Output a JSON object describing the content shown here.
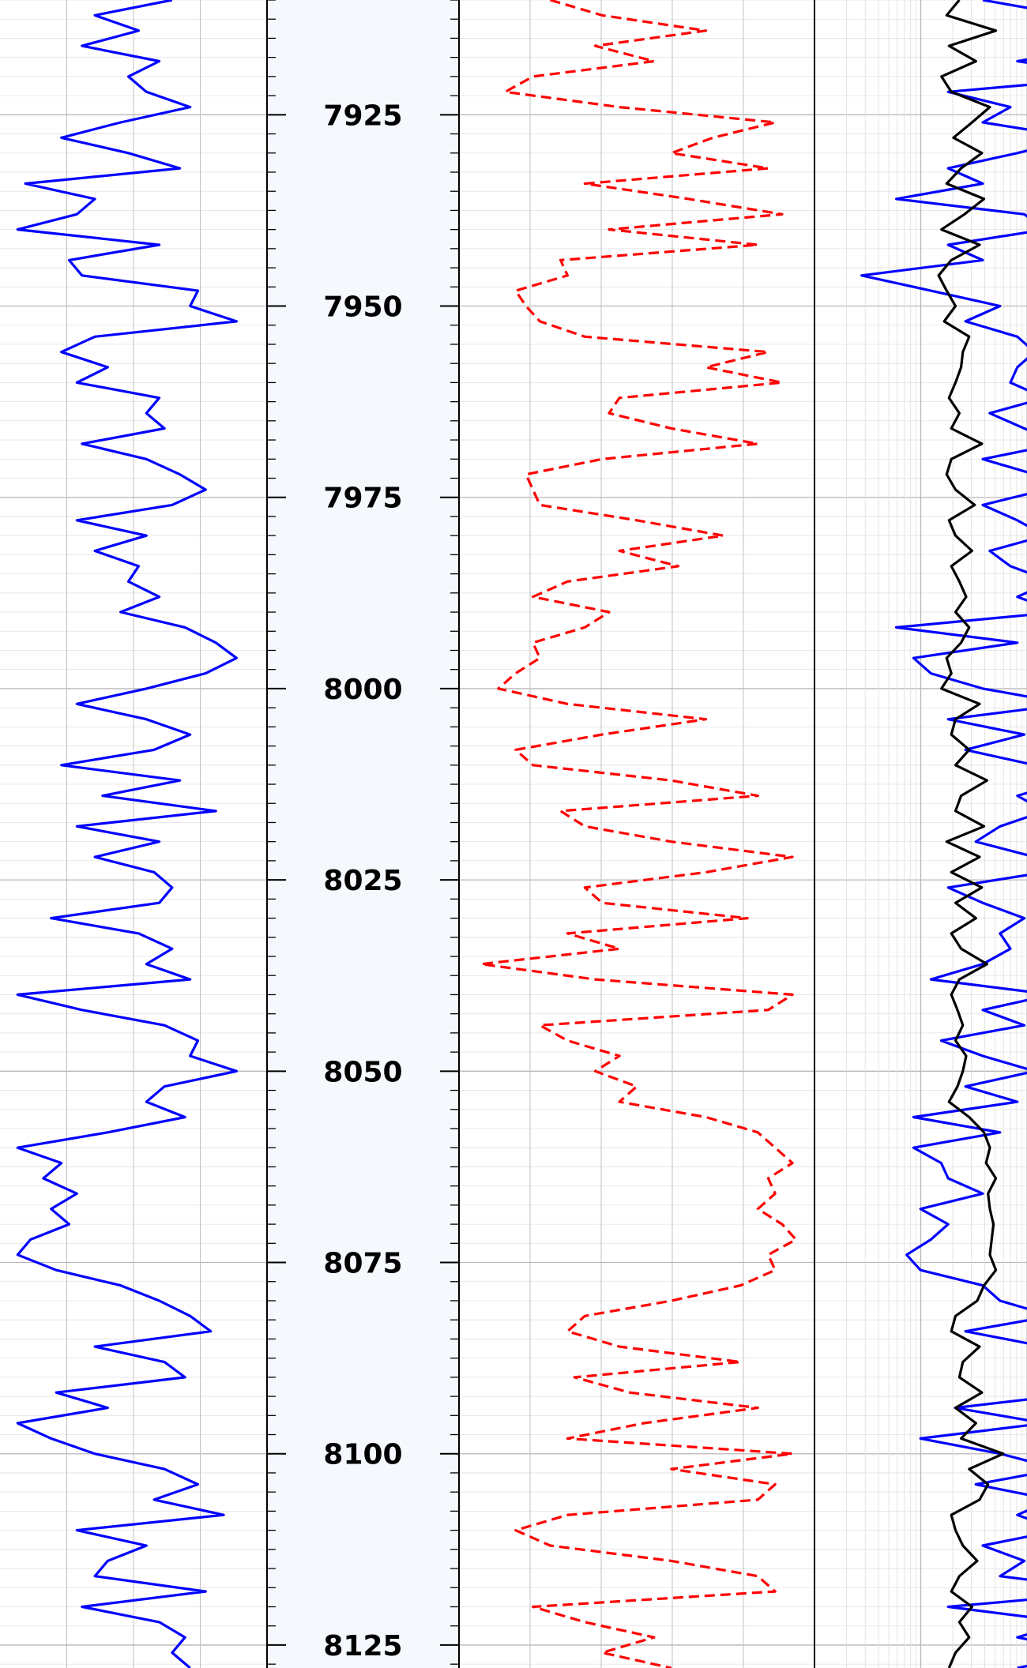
{
  "chart_data": {
    "type": "line",
    "title": "",
    "depth_axis": {
      "range": [
        7910,
        8128
      ],
      "major_step": 25,
      "minor_step": 2.5,
      "tick_labels": [
        "7925",
        "7950",
        "7975",
        "8000",
        "8025",
        "8050",
        "8075",
        "8100",
        "8125"
      ]
    },
    "tracks": [
      {
        "id": "track1",
        "background": "#ffffff",
        "grid": "linear",
        "vertical_divisions": 4
      },
      {
        "id": "depth",
        "background": "#f5f8fd"
      },
      {
        "id": "track2",
        "background": "#ffffff",
        "grid": "linear",
        "vertical_divisions": 5
      },
      {
        "id": "track3",
        "background": "#ffffff",
        "grid": "log",
        "decades": 2
      }
    ],
    "series": [
      {
        "track": "track1",
        "color": "#0000ff",
        "dash": "solid",
        "xlim": [
          0,
          100
        ],
        "depth": [
          7910,
          7912,
          7914,
          7916,
          7918,
          7920,
          7922,
          7924,
          7926,
          7928,
          7930,
          7932,
          7934,
          7936,
          7938,
          7940,
          7942,
          7944,
          7946,
          7948,
          7950,
          7952,
          7954,
          7956,
          7958,
          7960,
          7962,
          7964,
          7966,
          7968,
          7970,
          7972,
          7974,
          7976,
          7978,
          7980,
          7982,
          7984,
          7986,
          7988,
          7990,
          7992,
          7994,
          7996,
          7998,
          8000,
          8002,
          8004,
          8006,
          8008,
          8010,
          8012,
          8014,
          8016,
          8018,
          8020,
          8022,
          8024,
          8026,
          8028,
          8030,
          8032,
          8034,
          8036,
          8038,
          8040,
          8042,
          8044,
          8046,
          8048,
          8050,
          8052,
          8054,
          8056,
          8058,
          8060,
          8062,
          8064,
          8066,
          8068,
          8070,
          8072,
          8074,
          8076,
          8078,
          8080,
          8082,
          8084,
          8086,
          8088,
          8090,
          8092,
          8094,
          8096,
          8098,
          8100,
          8102,
          8104,
          8106,
          8108,
          8110,
          8112,
          8114,
          8116,
          8118,
          8120,
          8122,
          8124,
          8126,
          8128
        ],
        "values": [
          65,
          35,
          52,
          30,
          60,
          48,
          55,
          72,
          45,
          22,
          48,
          68,
          8,
          35,
          28,
          5,
          60,
          25,
          30,
          75,
          72,
          90,
          35,
          22,
          40,
          28,
          60,
          55,
          62,
          30,
          55,
          68,
          78,
          65,
          28,
          55,
          35,
          52,
          48,
          60,
          45,
          70,
          82,
          90,
          78,
          55,
          28,
          55,
          72,
          58,
          22,
          68,
          38,
          82,
          28,
          60,
          35,
          58,
          65,
          60,
          18,
          52,
          65,
          55,
          72,
          5,
          30,
          62,
          75,
          72,
          90,
          62,
          55,
          70,
          40,
          5,
          22,
          15,
          28,
          18,
          25,
          10,
          5,
          20,
          45,
          60,
          72,
          80,
          35,
          62,
          70,
          20,
          40,
          5,
          18,
          35,
          62,
          75,
          58,
          85,
          28,
          55,
          40,
          35,
          78,
          30,
          60,
          70,
          65,
          72
        ]
      },
      {
        "track": "track2",
        "color": "#ff0000",
        "dash": "dashed",
        "xlim": [
          0,
          100
        ],
        "depth": [
          7910,
          7912,
          7914,
          7916,
          7918,
          7920,
          7922,
          7924,
          7926,
          7928,
          7930,
          7932,
          7934,
          7936,
          7938,
          7940,
          7942,
          7944,
          7946,
          7948,
          7950,
          7952,
          7954,
          7956,
          7958,
          7960,
          7962,
          7964,
          7966,
          7968,
          7970,
          7972,
          7974,
          7976,
          7978,
          7980,
          7982,
          7984,
          7986,
          7988,
          7990,
          7992,
          7994,
          7996,
          7998,
          8000,
          8002,
          8004,
          8006,
          8008,
          8010,
          8012,
          8014,
          8016,
          8018,
          8020,
          8022,
          8024,
          8026,
          8028,
          8030,
          8032,
          8034,
          8036,
          8038,
          8040,
          8042,
          8044,
          8046,
          8048,
          8050,
          8052,
          8054,
          8056,
          8058,
          8060,
          8062,
          8064,
          8066,
          8068,
          8070,
          8072,
          8074,
          8076,
          8078,
          8080,
          8082,
          8084,
          8086,
          8088,
          8090,
          8092,
          8094,
          8096,
          8098,
          8100,
          8102,
          8104,
          8106,
          8108,
          8110,
          8112,
          8114,
          8116,
          8118,
          8120,
          8122,
          8124,
          8126,
          8128
        ],
        "values": [
          25,
          40,
          70,
          38,
          55,
          20,
          12,
          45,
          90,
          72,
          60,
          88,
          35,
          65,
          92,
          42,
          85,
          28,
          30,
          15,
          18,
          22,
          35,
          88,
          70,
          92,
          45,
          42,
          60,
          85,
          40,
          18,
          20,
          22,
          50,
          75,
          45,
          62,
          30,
          20,
          42,
          35,
          20,
          22,
          15,
          10,
          30,
          70,
          40,
          15,
          20,
          60,
          85,
          28,
          35,
          60,
          95,
          70,
          35,
          40,
          82,
          30,
          45,
          5,
          38,
          95,
          88,
          22,
          30,
          45,
          38,
          50,
          45,
          70,
          85,
          90,
          95,
          88,
          90,
          85,
          92,
          96,
          88,
          90,
          80,
          60,
          35,
          30,
          45,
          80,
          32,
          48,
          85,
          52,
          30,
          95,
          60,
          90,
          85,
          30,
          15,
          25,
          60,
          85,
          90,
          20,
          35,
          55,
          40,
          60
        ]
      },
      {
        "track": "track2",
        "color": "#0000ff",
        "dash": "solid",
        "xlim": [
          0,
          100
        ],
        "depth": [
          7910,
          7912,
          7914,
          7916,
          7918,
          7920,
          7922,
          7924,
          7926,
          7928,
          7930,
          7932,
          7934,
          7936,
          7938,
          7940,
          7942,
          7944,
          7946,
          7948,
          7950,
          7952,
          7954,
          7956,
          7958,
          7960,
          7962,
          7964,
          7966,
          7968,
          7970,
          7972,
          7974,
          7976,
          7978,
          7980,
          7982,
          7984,
          7986,
          7988,
          7990,
          7992,
          7994,
          7996,
          7998,
          8000,
          8002,
          8004,
          8006,
          8008,
          8010,
          8012,
          8014,
          8016,
          8018,
          8020,
          8022,
          8024,
          8026,
          8028,
          8030,
          8032,
          8034,
          8036,
          8038,
          8040,
          8042,
          8044,
          8046,
          8048,
          8050,
          8052,
          8054,
          8056,
          8058,
          8060,
          8062,
          8064,
          8066,
          8068,
          8070,
          8072,
          8074,
          8076,
          8078,
          8080,
          8082,
          8084,
          8086,
          8088,
          8090,
          8092,
          8094,
          8096,
          8098,
          8100,
          8102,
          8104,
          8106,
          8108,
          8110,
          8112,
          8114,
          8116,
          8118,
          8120,
          8122,
          8124,
          8126,
          8128
        ],
        "values": [
          150,
          175,
          168,
          185,
          160,
          190,
          140,
          158,
          150,
          178,
          160,
          140,
          150,
          125,
          162,
          168,
          140,
          150,
          115,
          135,
          155,
          145,
          160,
          165,
          160,
          158,
          168,
          152,
          162,
          172,
          150,
          165,
          168,
          150,
          160,
          168,
          152,
          158,
          170,
          160,
          172,
          125,
          160,
          130,
          135,
          150,
          175,
          140,
          162,
          145,
          165,
          175,
          160,
          168,
          155,
          148,
          165,
          168,
          140,
          150,
          162,
          155,
          158,
          150,
          135,
          170,
          150,
          162,
          138,
          150,
          165,
          145,
          160,
          130,
          155,
          130,
          138,
          140,
          150,
          132,
          140,
          135,
          128,
          132,
          150,
          155,
          170,
          145,
          168,
          180,
          168,
          180,
          142,
          168,
          132,
          155,
          172,
          148,
          170,
          160,
          172,
          150,
          162,
          155,
          190,
          140,
          175,
          160,
          182,
          160
        ]
      },
      {
        "track": "track3",
        "color": "#000000",
        "dash": "solid",
        "xlim": [
          0.1,
          10
        ],
        "scale": "log",
        "depth": [
          7910,
          7912,
          7914,
          7916,
          7918,
          7920,
          7922,
          7924,
          7926,
          7928,
          7930,
          7932,
          7934,
          7936,
          7938,
          7940,
          7942,
          7944,
          7946,
          7948,
          7950,
          7952,
          7954,
          7956,
          7958,
          7960,
          7962,
          7964,
          7966,
          7968,
          7970,
          7972,
          7974,
          7976,
          7978,
          7980,
          7982,
          7984,
          7986,
          7988,
          7990,
          7992,
          7994,
          7996,
          7998,
          8000,
          8002,
          8004,
          8006,
          8008,
          8010,
          8012,
          8014,
          8016,
          8018,
          8020,
          8022,
          8024,
          8026,
          8028,
          8030,
          8032,
          8034,
          8036,
          8038,
          8040,
          8042,
          8044,
          8046,
          8048,
          8050,
          8052,
          8054,
          8056,
          8058,
          8060,
          8062,
          8064,
          8066,
          8068,
          8070,
          8072,
          8074,
          8076,
          8078,
          8080,
          8082,
          8084,
          8086,
          8088,
          8090,
          8092,
          8094,
          8096,
          8098,
          8100,
          8102,
          8104,
          8106,
          8108,
          8110,
          8112,
          8114,
          8116,
          8118,
          8120,
          8122,
          8124,
          8126,
          8128
        ],
        "values": [
          2.4,
          1.8,
          5.5,
          1.9,
          3.5,
          1.6,
          2.0,
          4.8,
          3.2,
          2.1,
          4.0,
          2.5,
          1.8,
          4.2,
          2.7,
          1.6,
          3.8,
          2.0,
          1.5,
          1.8,
          2.2,
          1.7,
          3.0,
          2.6,
          2.5,
          2.2,
          1.9,
          2.4,
          2.0,
          4.0,
          2.0,
          1.8,
          2.2,
          3.4,
          1.9,
          2.2,
          3.2,
          2.0,
          2.4,
          2.8,
          2.2,
          3.0,
          2.5,
          1.8,
          2.0,
          1.6,
          3.8,
          2.2,
          2.0,
          3.0,
          2.2,
          4.5,
          2.5,
          2.2,
          4.2,
          1.8,
          3.8,
          2.0,
          4.0,
          2.2,
          3.5,
          2.0,
          2.5,
          4.5,
          2.4,
          2.0,
          2.3,
          2.6,
          2.2,
          2.8,
          2.6,
          2.3,
          1.9,
          3.0,
          4.2,
          4.8,
          4.4,
          5.5,
          4.6,
          4.8,
          5.2,
          5.0,
          4.8,
          5.5,
          4.2,
          3.6,
          2.2,
          2.0,
          3.8,
          2.6,
          2.4,
          4.0,
          2.2,
          3.5,
          2.5,
          6.5,
          3.0,
          4.6,
          3.8,
          2.0,
          2.2,
          2.6,
          3.6,
          2.4,
          2.0,
          3.2,
          2.4,
          3.0,
          2.2,
          1.9
        ]
      }
    ]
  }
}
